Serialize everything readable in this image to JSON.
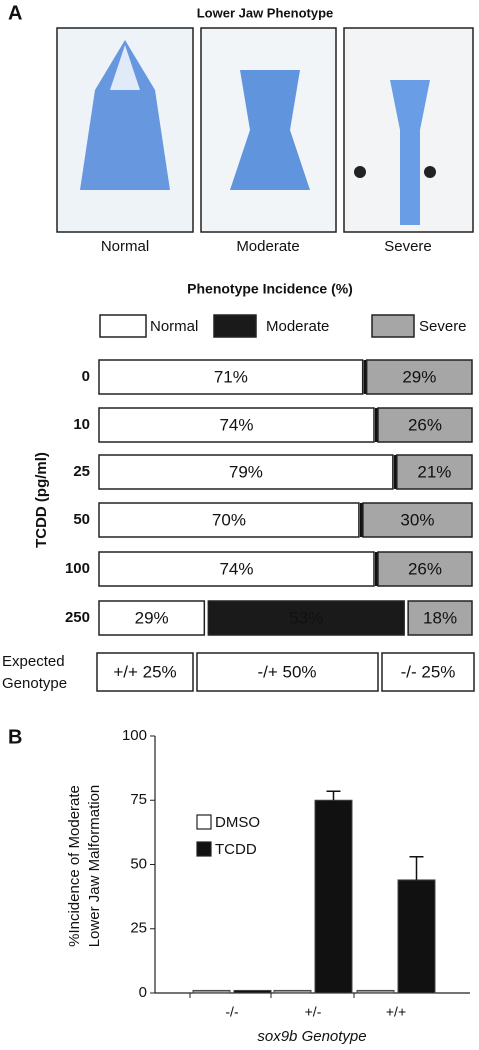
{
  "panels": {
    "a": "A",
    "b": "B"
  },
  "photos": {
    "title": "Lower Jaw Phenotype",
    "captions": [
      "Normal",
      "Moderate",
      "Severe"
    ]
  },
  "expected_genotype": {
    "label": [
      "Expected",
      "Genotype"
    ],
    "cells": [
      "+/+ 25%",
      "-/+ 50%",
      "-/- 25%"
    ]
  },
  "chart_data": [
    {
      "type": "hbar-stacked",
      "title": "Phenotype Incidence (%)",
      "y_label": "TCDD (pg/ml)",
      "categories": [
        "0",
        "10",
        "25",
        "50",
        "100",
        "250"
      ],
      "xlim": [
        0,
        100
      ],
      "series": [
        {
          "name": "Normal",
          "color": "#ffffff",
          "values": [
            71,
            74,
            79,
            70,
            74,
            29
          ],
          "value_labels": [
            "71%",
            "74%",
            "79%",
            "70%",
            "74%",
            "29%"
          ]
        },
        {
          "name": "Moderate",
          "color": "#1a1a1a",
          "values": [
            0,
            0,
            0,
            0,
            0,
            53
          ],
          "value_labels": [
            null,
            null,
            null,
            null,
            null,
            "53%"
          ]
        },
        {
          "name": "Severe",
          "color": "#a6a6a6",
          "values": [
            29,
            26,
            21,
            30,
            26,
            18
          ],
          "value_labels": [
            "29%",
            "26%",
            "21%",
            "30%",
            "26%",
            "18%"
          ]
        }
      ]
    },
    {
      "type": "bar",
      "y_label": [
        "%Incidence of Moderate",
        "Lower Jaw Malformation"
      ],
      "x_label": "sox9b Genotype",
      "categories": [
        "-/-",
        "+/-",
        "+/+"
      ],
      "ylim": [
        0,
        100
      ],
      "yticks": [
        0,
        25,
        50,
        75,
        100
      ],
      "series": [
        {
          "name": "DMSO",
          "color": "#ffffff",
          "values": [
            1,
            1,
            1
          ]
        },
        {
          "name": "TCDD",
          "color": "#111111",
          "values": [
            1,
            75,
            44
          ],
          "errors": [
            0,
            3.5,
            9
          ]
        }
      ]
    }
  ]
}
